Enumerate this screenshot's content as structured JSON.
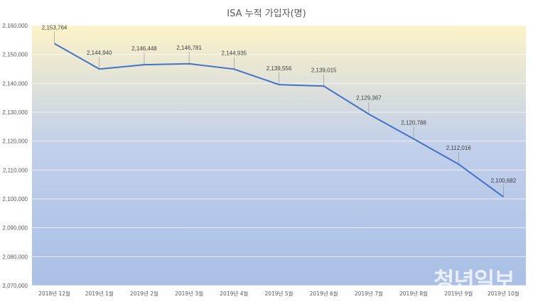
{
  "chart_data": {
    "type": "line",
    "title": "ISA 누적 가입자(명)",
    "xlabel": "",
    "ylabel": "",
    "categories": [
      "2018년 12월",
      "2019년 1월",
      "2019년 2월",
      "2019년 3월",
      "2019년 4월",
      "2019년 5월",
      "2019년 6월",
      "2019년 7월",
      "2019년 8월",
      "2019년 9월",
      "2019년 10월"
    ],
    "series": [
      {
        "name": "ISA 누적 가입자",
        "values": [
          2153764,
          2144940,
          2146448,
          2146781,
          2144935,
          2139556,
          2139015,
          2129367,
          2120788,
          2112016,
          2100682
        ],
        "labels": [
          "2,153,764",
          "2,144,940",
          "2,146,448",
          "2,146,781",
          "2,144,935",
          "2,139,556",
          "2,139,015",
          "2,129,367",
          "2,120,788",
          "2,112,016",
          "2,100,682"
        ]
      }
    ],
    "ylim": [
      2070000,
      2160000
    ],
    "yticks": [
      2070000,
      2080000,
      2090000,
      2100000,
      2110000,
      2120000,
      2130000,
      2140000,
      2150000,
      2160000
    ],
    "ytick_labels": [
      "2,070,000",
      "2,080,000",
      "2,090,000",
      "2,100,000",
      "2,110,000",
      "2,120,000",
      "2,130,000",
      "2,140,000",
      "2,150,000",
      "2,160,000"
    ],
    "grid": true,
    "line_color": "#4472c4",
    "background_gradient": [
      "#fdf3c8",
      "#c2d0ea",
      "#a9bfe6"
    ]
  },
  "watermark": "청년일보"
}
